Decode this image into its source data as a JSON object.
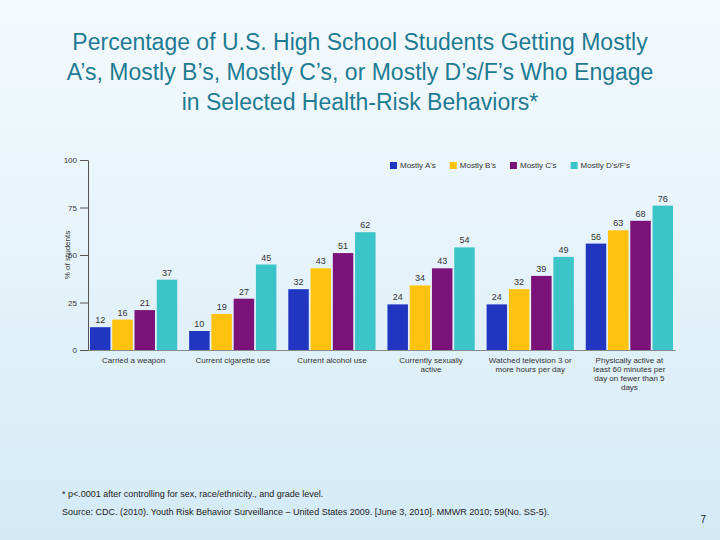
{
  "chart_data": {
    "type": "bar",
    "title": "Percentage of U.S. High School Students Getting Mostly A’s, Mostly B’s, Mostly C’s, or Mostly D’s/F’s Who Engage in Selected Health-Risk Behaviors*",
    "y_label": "% of students",
    "categories": [
      "Carried a weapon",
      "Current cigarette use",
      "Current alcohol use",
      "Currently sexually active",
      "Watched television 3 or more hours per day",
      "Physically active at least 60 minutes per day on fewer than 5 days"
    ],
    "series": [
      {
        "name": "Mostly A's",
        "color": "#2035c0",
        "values": [
          12,
          10,
          32,
          24,
          24,
          56
        ]
      },
      {
        "name": "Mostly B's",
        "color": "#ffc20e",
        "values": [
          16,
          19,
          43,
          34,
          32,
          63
        ]
      },
      {
        "name": "Mostly C's",
        "color": "#7a1279",
        "values": [
          21,
          27,
          51,
          43,
          39,
          68
        ]
      },
      {
        "name": "Mostly D's/F's",
        "color": "#3cc5c9",
        "values": [
          37,
          45,
          62,
          54,
          49,
          76
        ]
      }
    ],
    "ylim": [
      0,
      100
    ],
    "yticks": [
      0,
      25,
      50,
      75,
      100
    ],
    "grid": false,
    "legend": "top-right",
    "data_labels": true,
    "annotations": [
      "* p<.0001 after controlling for sex, race/ethnicity., and grade level.",
      "Source:  CDC. (2010). Youth Risk Behavior Surveillance – United States 2009. [June 3, 2010]. MMWR 2010; 59(No. SS-5).",
      "7"
    ]
  }
}
